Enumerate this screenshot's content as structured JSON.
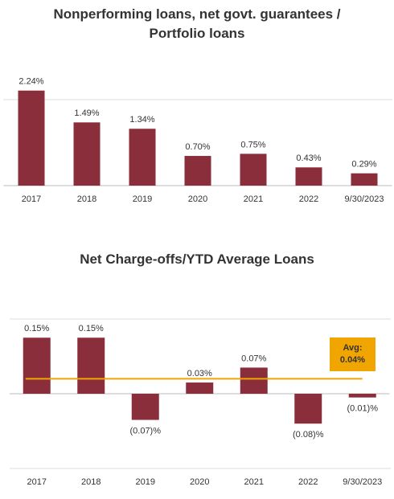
{
  "chart_data": [
    {
      "type": "bar",
      "title": "Nonperforming loans, net govt. guarantees / Portfolio loans",
      "categories": [
        "2017",
        "2018",
        "2019",
        "2020",
        "2021",
        "2022",
        "9/30/2023"
      ],
      "values": [
        2.24,
        1.49,
        1.34,
        0.7,
        0.75,
        0.43,
        0.29
      ],
      "value_labels": [
        "2.24%",
        "1.49%",
        "1.34%",
        "0.70%",
        "0.75%",
        "0.43%",
        "0.29%"
      ],
      "color": "#8b2e3c",
      "ylim": [
        0,
        2.5
      ]
    },
    {
      "type": "bar",
      "title": "Net Charge-offs/YTD Average Loans",
      "categories": [
        "2017",
        "2018",
        "2019",
        "2020",
        "2021",
        "2022",
        "9/30/2023"
      ],
      "values": [
        0.15,
        0.15,
        -0.07,
        0.03,
        0.07,
        -0.08,
        -0.01
      ],
      "value_labels": [
        "0.15%",
        "0.15%",
        "(0.07)%",
        "0.03%",
        "0.07%",
        "(0.08)%",
        "(0.01)%"
      ],
      "color": "#8b2e3c",
      "ylim": [
        -0.2,
        0.2
      ],
      "average": {
        "value": 0.04,
        "label": [
          "Avg:",
          "0.04%"
        ],
        "color": "#f0a500"
      }
    }
  ]
}
